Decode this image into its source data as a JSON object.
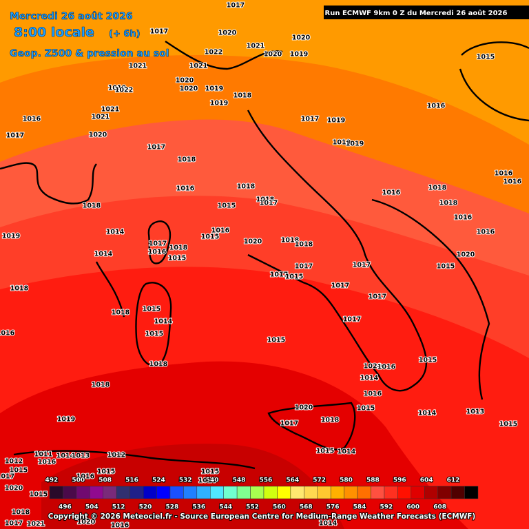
{
  "header": {
    "date": "Mercredi 26 août 2026",
    "time": "8:00 locale",
    "offset": "(+ 6h)",
    "product": "Geop. Z500 & pression au sol",
    "run": "Run ECMWF 9km 0 Z du Mercredi 26 août 2026"
  },
  "legend": {
    "colors": [
      "#2a0a2a",
      "#4a0a4a",
      "#700a70",
      "#900a90",
      "#7a2a7a",
      "#303070",
      "#20208a",
      "#0000c8",
      "#0000ff",
      "#1a50ff",
      "#2080ff",
      "#30b0ff",
      "#50e8ff",
      "#70ffd0",
      "#80ff90",
      "#a8ff50",
      "#d0ff10",
      "#ffff00",
      "#ffe870",
      "#ffd850",
      "#ffc830",
      "#ffb000",
      "#ff9000",
      "#ff7000",
      "#ff5040",
      "#ff3020",
      "#ff1000",
      "#e00000",
      "#b00000",
      "#800000",
      "#500000",
      "#000000"
    ],
    "top_labels": [
      492,
      500,
      508,
      516,
      524,
      532,
      540,
      548,
      556,
      564,
      572,
      580,
      588,
      596,
      604,
      612
    ],
    "bottom_labels": [
      496,
      504,
      512,
      520,
      528,
      536,
      544,
      552,
      560,
      568,
      576,
      584,
      592,
      600,
      608
    ]
  },
  "pressure_labels": [
    1017,
    1017,
    1020,
    1020,
    1021,
    1022,
    1020,
    1019,
    1015,
    1021,
    1021,
    1020,
    1020,
    1019,
    1019,
    1022,
    1018,
    1019,
    1016,
    1021,
    1021,
    1016,
    1017,
    1019,
    1017,
    1020,
    1019,
    1019,
    1017,
    1018,
    1016,
    1016,
    1016,
    1018,
    1016,
    1018,
    1018,
    1017,
    1015,
    1018,
    1018,
    1016,
    1016,
    1015,
    1014,
    1019,
    1017,
    1020,
    1018,
    1018,
    1016,
    1018,
    1016,
    1015,
    1014,
    1015,
    1020,
    1017,
    1017,
    1017,
    1015,
    1018,
    1017,
    1017,
    1015,
    1018,
    1017,
    1014,
    1016,
    1015,
    1015,
    1015,
    1018,
    1020,
    1016,
    1014,
    1018,
    1016,
    1020,
    1015,
    1014,
    1013,
    1019,
    1018,
    1017,
    1015,
    1014,
    1012,
    1011,
    1014,
    1013,
    1012,
    1016,
    1015,
    1015,
    1017,
    1016,
    1015,
    1018,
    1020,
    1015,
    1018,
    1017,
    1021,
    1020,
    1016,
    1014,
    1015
  ],
  "copyright": "Copyright © 2026 Meteociel.fr - Source European Centre for Medium-Range Weather Forecasts (ECMWF)"
}
